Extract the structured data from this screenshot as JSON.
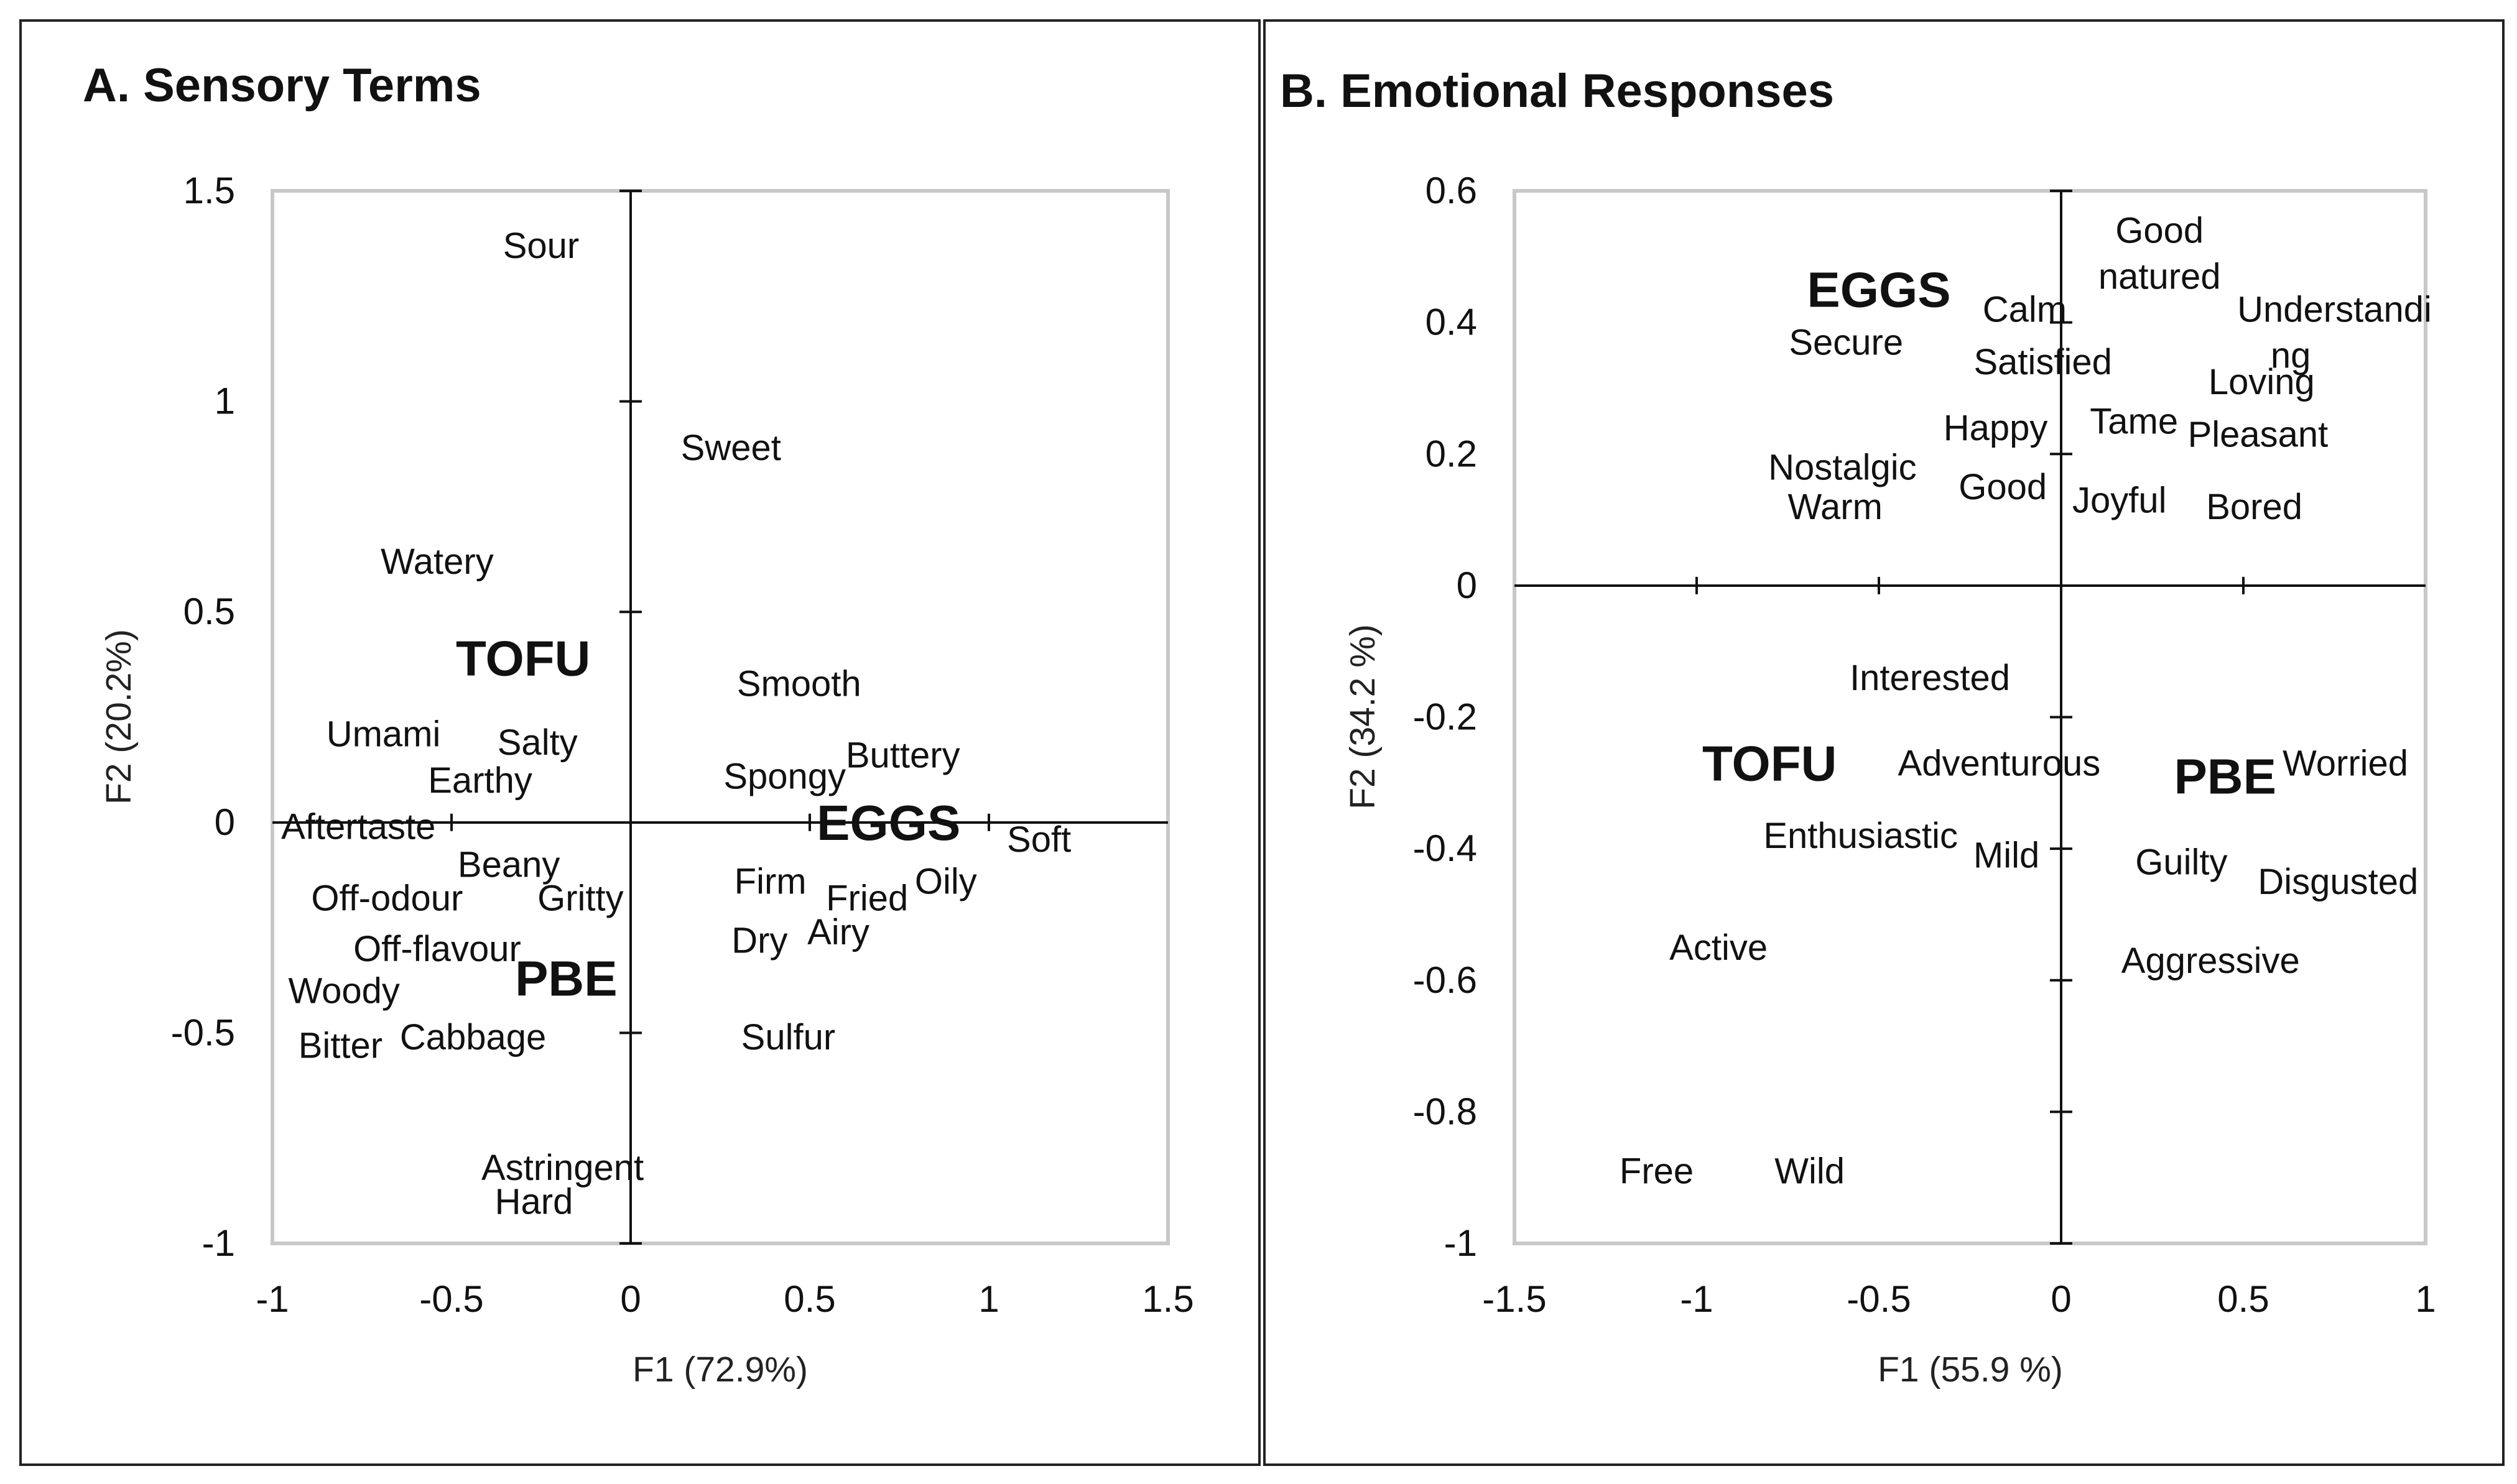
{
  "chart_data": [
    {
      "type": "scatter",
      "panel": "A",
      "title": "A. Sensory Terms",
      "xlabel": "F1 (72.9%)",
      "ylabel": "F2 (20.2%)",
      "xlim": [
        -1,
        1.5
      ],
      "ylim": [
        -1,
        1.5
      ],
      "xticks": [
        "-1",
        "-0.5",
        "0",
        "0.5",
        "1",
        "1.5"
      ],
      "yticks": [
        "-1",
        "-0.5",
        "0",
        "0.5",
        "1",
        "1.5"
      ],
      "points": [
        {
          "label": "Sour",
          "x": -0.25,
          "y": 1.37
        },
        {
          "label": "Sweet",
          "x": 0.28,
          "y": 0.89
        },
        {
          "label": "Watery",
          "x": -0.54,
          "y": 0.62
        },
        {
          "label": "TOFU",
          "x": -0.3,
          "y": 0.39,
          "bold": true
        },
        {
          "label": "Smooth",
          "x": 0.47,
          "y": 0.33
        },
        {
          "label": "Umami",
          "x": -0.69,
          "y": 0.21
        },
        {
          "label": "Salty",
          "x": -0.26,
          "y": 0.19
        },
        {
          "label": "Buttery",
          "x": 0.76,
          "y": 0.16
        },
        {
          "label": "Earthy",
          "x": -0.42,
          "y": 0.1
        },
        {
          "label": "Spongy",
          "x": 0.43,
          "y": 0.11
        },
        {
          "label": "EGGS",
          "x": 0.72,
          "y": 0.0,
          "bold": true
        },
        {
          "label": "Aftertaste",
          "x": -0.76,
          "y": -0.01
        },
        {
          "label": "Soft",
          "x": 1.14,
          "y": -0.04
        },
        {
          "label": "Beany",
          "x": -0.34,
          "y": -0.1
        },
        {
          "label": "Off-odour",
          "x": -0.68,
          "y": -0.18
        },
        {
          "label": "Gritty",
          "x": -0.14,
          "y": -0.18
        },
        {
          "label": "Firm",
          "x": 0.39,
          "y": -0.14
        },
        {
          "label": "Fried",
          "x": 0.66,
          "y": -0.18
        },
        {
          "label": "Oily",
          "x": 0.88,
          "y": -0.14
        },
        {
          "label": "Airy",
          "x": 0.58,
          "y": -0.26
        },
        {
          "label": "Dry",
          "x": 0.36,
          "y": -0.28
        },
        {
          "label": "Off-flavour",
          "x": -0.54,
          "y": -0.3
        },
        {
          "label": "PBE",
          "x": -0.18,
          "y": -0.37,
          "bold": true
        },
        {
          "label": "Woody",
          "x": -0.8,
          "y": -0.4
        },
        {
          "label": "Bitter",
          "x": -0.81,
          "y": -0.53
        },
        {
          "label": "Cabbage",
          "x": -0.44,
          "y": -0.51
        },
        {
          "label": "Sulfur",
          "x": 0.44,
          "y": -0.51
        },
        {
          "label": "Astringent",
          "x": -0.19,
          "y": -0.82
        },
        {
          "label": "Hard",
          "x": -0.27,
          "y": -0.9
        }
      ]
    },
    {
      "type": "scatter",
      "panel": "B",
      "title": "B. Emotional Responses",
      "xlabel": "F1 (55.9 %)",
      "ylabel": "F2 (34.2 %)",
      "xlim": [
        -1.5,
        1
      ],
      "ylim": [
        -1,
        0.6
      ],
      "xticks": [
        "-1.5",
        "-1",
        "-0.5",
        "0",
        "0.5",
        "1"
      ],
      "yticks": [
        "-1",
        "-0.8",
        "-0.6",
        "-0.4",
        "-0.2",
        "0",
        "0.2",
        "0.4",
        "0.6"
      ],
      "points": [
        {
          "label": "Good",
          "x": 0.27,
          "y": 0.54
        },
        {
          "label": "natured",
          "x": 0.27,
          "y": 0.47
        },
        {
          "label": "EGGS",
          "x": -0.5,
          "y": 0.45,
          "bold": true
        },
        {
          "label": "Calm",
          "x": -0.1,
          "y": 0.42
        },
        {
          "label": "Understandi",
          "x": 0.75,
          "y": 0.42
        },
        {
          "label": "Secure",
          "x": -0.59,
          "y": 0.37
        },
        {
          "label": "ng",
          "x": 0.63,
          "y": 0.35
        },
        {
          "label": "Satisfied",
          "x": -0.05,
          "y": 0.34
        },
        {
          "label": "Loving",
          "x": 0.55,
          "y": 0.31
        },
        {
          "label": "Happy",
          "x": -0.18,
          "y": 0.24
        },
        {
          "label": "Tame",
          "x": 0.2,
          "y": 0.25
        },
        {
          "label": "Pleasant",
          "x": 0.54,
          "y": 0.23
        },
        {
          "label": "Nostalgic",
          "x": -0.6,
          "y": 0.18
        },
        {
          "label": "Good",
          "x": -0.16,
          "y": 0.15
        },
        {
          "label": "Joyful",
          "x": 0.16,
          "y": 0.13
        },
        {
          "label": "Bored",
          "x": 0.53,
          "y": 0.12
        },
        {
          "label": "Warm",
          "x": -0.62,
          "y": 0.12
        },
        {
          "label": "Interested",
          "x": -0.36,
          "y": -0.14
        },
        {
          "label": "TOFU",
          "x": -0.8,
          "y": -0.27,
          "bold": true
        },
        {
          "label": "Adventurous",
          "x": -0.17,
          "y": -0.27
        },
        {
          "label": "PBE",
          "x": 0.45,
          "y": -0.29,
          "bold": true
        },
        {
          "label": "Worried",
          "x": 0.78,
          "y": -0.27
        },
        {
          "label": "Enthusiastic",
          "x": -0.55,
          "y": -0.38
        },
        {
          "label": "Mild",
          "x": -0.15,
          "y": -0.41
        },
        {
          "label": "Guilty",
          "x": 0.33,
          "y": -0.42
        },
        {
          "label": "Disgusted",
          "x": 0.76,
          "y": -0.45
        },
        {
          "label": "Active",
          "x": -0.94,
          "y": -0.55
        },
        {
          "label": "Aggressive",
          "x": 0.41,
          "y": -0.57
        },
        {
          "label": "Free",
          "x": -1.11,
          "y": -0.89
        },
        {
          "label": "Wild",
          "x": -0.69,
          "y": -0.89
        }
      ]
    }
  ]
}
